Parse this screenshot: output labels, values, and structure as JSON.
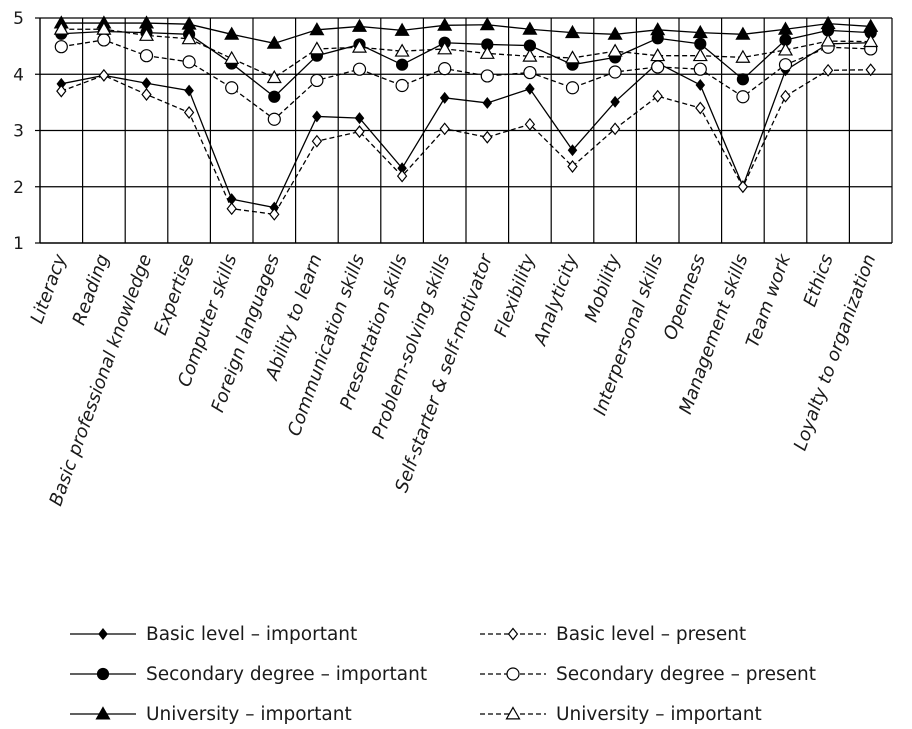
{
  "chart_data": {
    "type": "line",
    "title": "",
    "xlabel": "",
    "ylabel": "",
    "ylim": [
      1,
      5
    ],
    "yticks": [
      1,
      2,
      3,
      4,
      5
    ],
    "grid": true,
    "legend_position": "bottom",
    "categories": [
      "Literacy",
      "Reading",
      "Basic professional knowledge",
      "Expertise",
      "Computer skills",
      "Foreign languages",
      "Ability to learn",
      "Communication skills",
      "Presentation skills",
      "Problem-solving skills",
      "Self-starter & self-motivator",
      "Flexibility",
      "Analyticity",
      "Mobility",
      "Interpersonal skills",
      "Openness",
      "Management skills",
      "Team work",
      "Ethics",
      "Loyalty to organization"
    ],
    "series": [
      {
        "name": "Basic level – important",
        "line": "solid",
        "marker": "diamond-filled",
        "values": [
          3.83,
          3.98,
          3.84,
          3.71,
          1.78,
          1.63,
          3.25,
          3.22,
          2.33,
          3.58,
          3.49,
          3.74,
          2.65,
          3.51,
          4.2,
          3.81,
          2.01,
          4.07,
          4.54,
          4.56
        ]
      },
      {
        "name": "Basic level – present",
        "line": "dashed",
        "marker": "diamond-open",
        "values": [
          3.7,
          3.98,
          3.64,
          3.32,
          1.61,
          1.51,
          2.81,
          2.98,
          2.19,
          3.03,
          2.88,
          3.11,
          2.36,
          3.03,
          3.61,
          3.4,
          2.0,
          3.61,
          4.07,
          4.08
        ]
      },
      {
        "name": "Secondary degree – important",
        "line": "solid",
        "marker": "circle-filled",
        "values": [
          4.72,
          4.76,
          4.74,
          4.71,
          4.19,
          3.6,
          4.33,
          4.53,
          4.17,
          4.56,
          4.53,
          4.51,
          4.17,
          4.3,
          4.64,
          4.54,
          3.91,
          4.61,
          4.78,
          4.74
        ]
      },
      {
        "name": "Secondary degree – present",
        "line": "dashed",
        "marker": "circle-open",
        "values": [
          4.49,
          4.61,
          4.33,
          4.22,
          3.76,
          3.2,
          3.89,
          4.09,
          3.8,
          4.1,
          3.97,
          4.03,
          3.76,
          4.04,
          4.13,
          4.09,
          3.6,
          4.17,
          4.48,
          4.45
        ]
      },
      {
        "name": "University – important",
        "line": "solid",
        "marker": "triangle-filled",
        "values": [
          4.91,
          4.91,
          4.91,
          4.89,
          4.71,
          4.55,
          4.79,
          4.85,
          4.78,
          4.87,
          4.88,
          4.8,
          4.74,
          4.71,
          4.79,
          4.74,
          4.71,
          4.8,
          4.9,
          4.85
        ]
      },
      {
        "name": "University – important",
        "line": "dashed",
        "marker": "triangle-open",
        "values": [
          4.8,
          4.8,
          4.69,
          4.63,
          4.28,
          3.94,
          4.45,
          4.48,
          4.41,
          4.45,
          4.37,
          4.32,
          4.29,
          4.41,
          4.33,
          4.33,
          4.3,
          4.43,
          4.59,
          4.58
        ]
      }
    ]
  }
}
